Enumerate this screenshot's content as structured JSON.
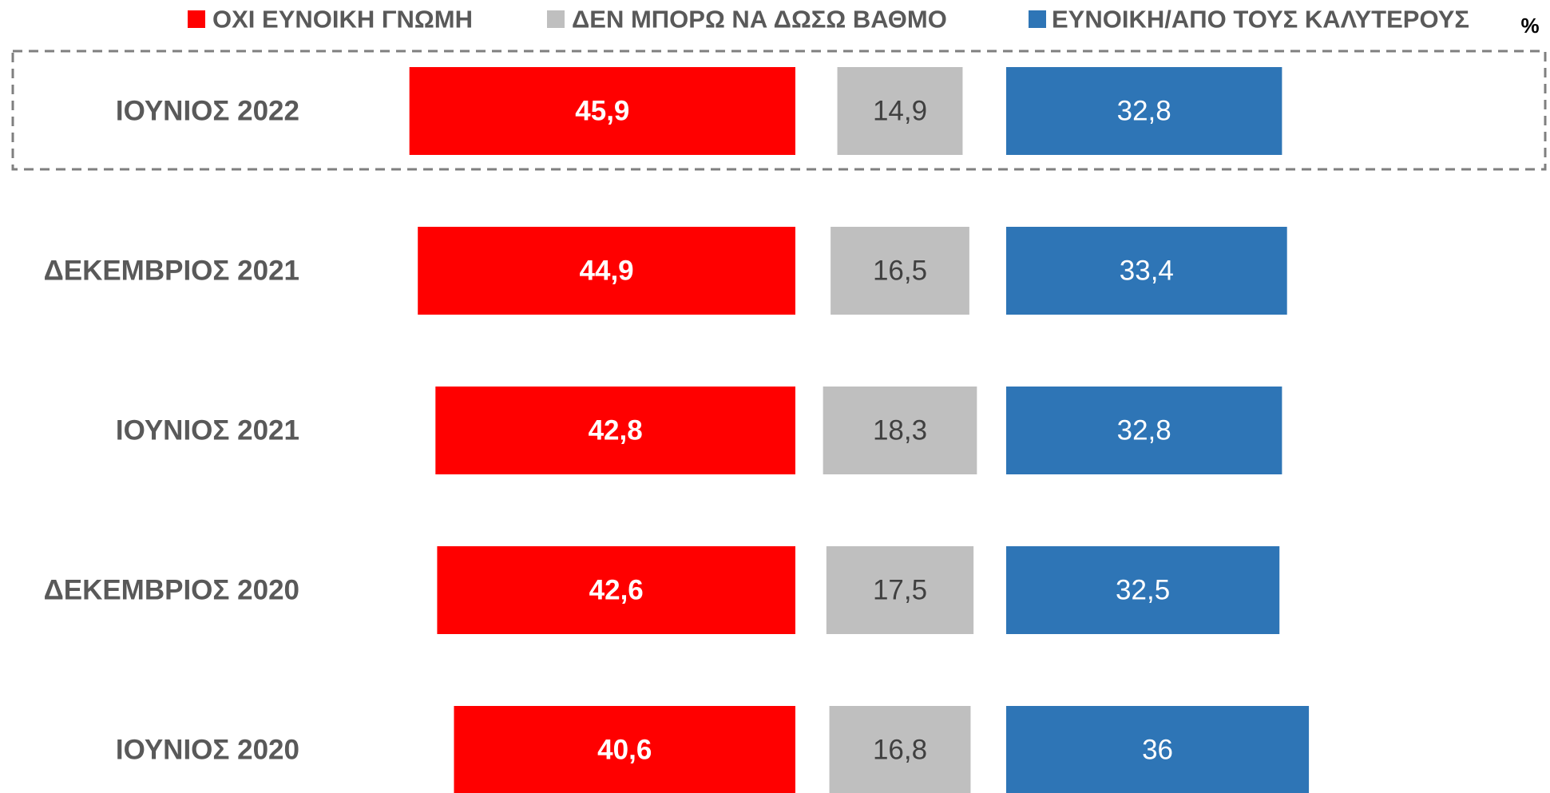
{
  "chart_data": {
    "type": "bar",
    "unit": "%",
    "categories": [
      "ΙΟΥΝΙΟΣ 2022",
      "ΔΕΚΕΜΒΡΙΟΣ 2021",
      "ΙΟΥΝΙΟΣ 2021",
      "ΔΕΚΕΜΒΡΙΟΣ 2020",
      "ΙΟΥΝΙΟΣ 2020"
    ],
    "series": [
      {
        "name": "ΟΧΙ ΕΥΝΟΙΚΗ ΓΝΩΜΗ",
        "color": "#ff0000",
        "values": [
          45.9,
          44.9,
          42.8,
          42.6,
          40.6
        ],
        "value_labels": [
          "45,9",
          "44,9",
          "42,8",
          "42,6",
          "40,6"
        ]
      },
      {
        "name": "ΔΕΝ ΜΠΟΡΩ ΝΑ ΔΩΣΩ ΒΑΘΜΟ",
        "color": "#bfbfbf",
        "values": [
          14.9,
          16.5,
          18.3,
          17.5,
          16.8
        ],
        "value_labels": [
          "14,9",
          "16,5",
          "18,3",
          "17,5",
          "16,8"
        ]
      },
      {
        "name": "ΕΥΝΟΙΚΗ/ΑΠΟ ΤΟΥΣ ΚΑΛΥΤΕΡΟΥΣ",
        "color": "#2e75b6",
        "values": [
          32.8,
          33.4,
          32.8,
          32.5,
          36
        ],
        "value_labels": [
          "32,8",
          "33,4",
          "32,8",
          "32,5",
          "36"
        ]
      }
    ]
  }
}
